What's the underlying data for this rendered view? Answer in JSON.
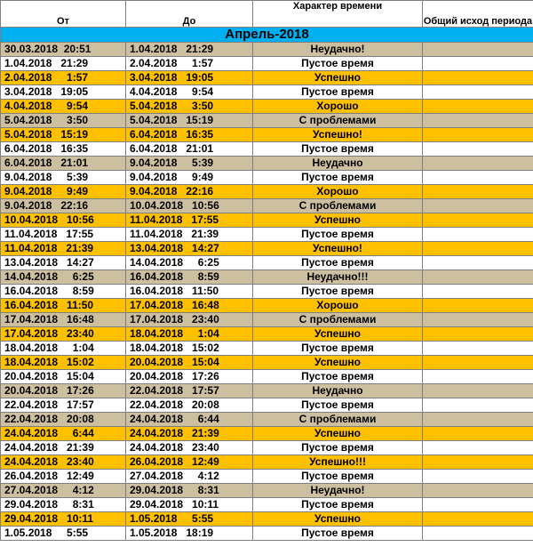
{
  "columns": {
    "from": "От",
    "to": "До",
    "character": "Характер времени",
    "outcome": "Общий исход периода"
  },
  "month_title": "Апрель-2018",
  "colors": {
    "header_band": "#00b0f0",
    "gold": "#ffc000",
    "gray": "#ccc0a0",
    "white": "#ffffff"
  },
  "rows": [
    {
      "from": "30.03.2018  20:51",
      "to": "1.04.2018   21:29",
      "character": "Неудачно!",
      "tone": "gray"
    },
    {
      "from": "1.04.2018   21:29",
      "to": "2.04.2018     1:57",
      "character": "Пустое время",
      "tone": "white"
    },
    {
      "from": "2.04.2018     1:57",
      "to": "3.04.2018   19:05",
      "character": "Успешно",
      "tone": "gold"
    },
    {
      "from": "3.04.2018   19:05",
      "to": "4.04.2018     9:54",
      "character": "Пустое время",
      "tone": "white"
    },
    {
      "from": "4.04.2018     9:54",
      "to": "5.04.2018     3:50",
      "character": "Хорошо",
      "tone": "gold"
    },
    {
      "from": "5.04.2018     3:50",
      "to": "5.04.2018   15:19",
      "character": "С проблемами",
      "tone": "gray"
    },
    {
      "from": "5.04.2018   15:19",
      "to": "6.04.2018   16:35",
      "character": "Успешно!",
      "tone": "gold"
    },
    {
      "from": "6.04.2018   16:35",
      "to": "6.04.2018   21:01",
      "character": "Пустое время",
      "tone": "white"
    },
    {
      "from": "6.04.2018   21:01",
      "to": "9.04.2018     5:39",
      "character": "Неудачно",
      "tone": "gray"
    },
    {
      "from": "9.04.2018     5:39",
      "to": "9.04.2018     9:49",
      "character": "Пустое время",
      "tone": "white"
    },
    {
      "from": "9.04.2018     9:49",
      "to": "9.04.2018   22:16",
      "character": "Хорошо",
      "tone": "gold"
    },
    {
      "from": "9.04.2018   22:16",
      "to": "10.04.2018   10:56",
      "character": "С проблемами",
      "tone": "gray"
    },
    {
      "from": "10.04.2018   10:56",
      "to": "11.04.2018   17:55",
      "character": "Успешно",
      "tone": "gold"
    },
    {
      "from": "11.04.2018   17:55",
      "to": "11.04.2018   21:39",
      "character": "Пустое время",
      "tone": "white"
    },
    {
      "from": "11.04.2018   21:39",
      "to": "13.04.2018   14:27",
      "character": "Успешно!",
      "tone": "gold"
    },
    {
      "from": "13.04.2018   14:27",
      "to": "14.04.2018     6:25",
      "character": "Пустое время",
      "tone": "white"
    },
    {
      "from": "14.04.2018     6:25",
      "to": "16.04.2018     8:59",
      "character": "Неудачно!!!",
      "tone": "gray"
    },
    {
      "from": "16.04.2018     8:59",
      "to": "16.04.2018   11:50",
      "character": "Пустое время",
      "tone": "white"
    },
    {
      "from": "16.04.2018   11:50",
      "to": "17.04.2018   16:48",
      "character": "Хорошо",
      "tone": "gold"
    },
    {
      "from": "17.04.2018   16:48",
      "to": "17.04.2018   23:40",
      "character": "С проблемами",
      "tone": "gray"
    },
    {
      "from": "17.04.2018   23:40",
      "to": "18.04.2018     1:04",
      "character": "Успешно",
      "tone": "gold"
    },
    {
      "from": "18.04.2018     1:04",
      "to": "18.04.2018   15:02",
      "character": "Пустое время",
      "tone": "white"
    },
    {
      "from": "18.04.2018   15:02",
      "to": "20.04.2018   15:04",
      "character": "Успешно",
      "tone": "gold"
    },
    {
      "from": "20.04.2018   15:04",
      "to": "20.04.2018   17:26",
      "character": "Пустое время",
      "tone": "white"
    },
    {
      "from": "20.04.2018   17:26",
      "to": "22.04.2018   17:57",
      "character": "Неудачно",
      "tone": "gray"
    },
    {
      "from": "22.04.2018   17:57",
      "to": "22.04.2018   20:08",
      "character": "Пустое время",
      "tone": "white"
    },
    {
      "from": "22.04.2018   20:08",
      "to": "24.04.2018     6:44",
      "character": "С проблемами",
      "tone": "gray"
    },
    {
      "from": "24.04.2018     6:44",
      "to": "24.04.2018   21:39",
      "character": "Успешно",
      "tone": "gold"
    },
    {
      "from": "24.04.2018   21:39",
      "to": "24.04.2018   23:40",
      "character": "Пустое время",
      "tone": "white"
    },
    {
      "from": "24.04.2018   23:40",
      "to": "26.04.2018   12:49",
      "character": "Успешно!!!",
      "tone": "gold"
    },
    {
      "from": "26.04.2018   12:49",
      "to": "27.04.2018     4:12",
      "character": "Пустое время",
      "tone": "white"
    },
    {
      "from": "27.04.2018     4:12",
      "to": "29.04.2018     8:31",
      "character": "Неудачно!",
      "tone": "gray"
    },
    {
      "from": "29.04.2018     8:31",
      "to": "29.04.2018   10:11",
      "character": "Пустое время",
      "tone": "white"
    },
    {
      "from": "29.04.2018   10:11",
      "to": "1.05.2018     5:55",
      "character": "Успешно",
      "tone": "gold"
    },
    {
      "from": "1.05.2018     5:55",
      "to": "1.05.2018   18:19",
      "character": "Пустое время",
      "tone": "white"
    }
  ]
}
